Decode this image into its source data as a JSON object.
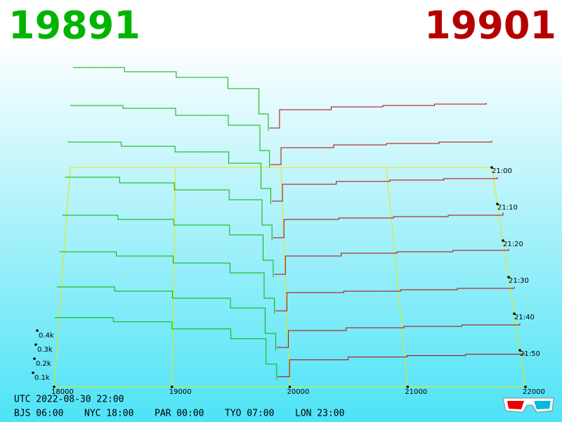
{
  "chart_data": {
    "type": "depth-waterfall",
    "best_bid": "19891",
    "best_ask": "19901",
    "bid_color": "#00b400",
    "ask_color": "#b40000",
    "frame_color": "#e8e800",
    "xlim": [
      18000,
      22000
    ],
    "xticks": [
      18000,
      19000,
      20000,
      21000,
      22000
    ],
    "ylim": [
      0,
      1
    ],
    "yticks": [
      {
        "value": 0.1,
        "label": "0.1k"
      },
      {
        "value": 0.2,
        "label": "0.2k"
      },
      {
        "value": 0.3,
        "label": "0.3k"
      },
      {
        "value": 0.4,
        "label": "0.4k"
      }
    ],
    "zlim": [
      0,
      60
    ],
    "zticks": [
      {
        "value": 0,
        "label": "21:00"
      },
      {
        "value": 10,
        "label": "21:10"
      },
      {
        "value": 20,
        "label": "21:20"
      },
      {
        "value": 30,
        "label": "21:30"
      },
      {
        "value": 40,
        "label": "21:40"
      },
      {
        "value": 50,
        "label": "21:50"
      }
    ],
    "bid_prices": [
      18000,
      18500,
      19000,
      19500,
      19800,
      19891
    ],
    "ask_prices": [
      19901,
      20000,
      20500,
      21000,
      21500,
      22000
    ],
    "snapshots": [
      {
        "z": -10,
        "bid": [
          0.45,
          0.42,
          0.38,
          0.3,
          0.12,
          0
        ],
        "ask": [
          0.02,
          0.15,
          0.17,
          0.18,
          0.19,
          0.2
        ]
      },
      {
        "z": 0,
        "bid": [
          0.44,
          0.42,
          0.37,
          0.3,
          0.12,
          0
        ],
        "ask": [
          0.02,
          0.14,
          0.16,
          0.17,
          0.18,
          0.19
        ]
      },
      {
        "z": 10,
        "bid": [
          0.44,
          0.41,
          0.37,
          0.29,
          0.11,
          0
        ],
        "ask": [
          0.02,
          0.14,
          0.16,
          0.17,
          0.18,
          0.19
        ]
      },
      {
        "z": 20,
        "bid": [
          0.45,
          0.41,
          0.36,
          0.29,
          0.11,
          0
        ],
        "ask": [
          0.02,
          0.15,
          0.16,
          0.17,
          0.18,
          0.2
        ]
      },
      {
        "z": 30,
        "bid": [
          0.44,
          0.41,
          0.37,
          0.3,
          0.12,
          0
        ],
        "ask": [
          0.02,
          0.15,
          0.17,
          0.18,
          0.19,
          0.2
        ]
      },
      {
        "z": 40,
        "bid": [
          0.44,
          0.41,
          0.36,
          0.29,
          0.11,
          0
        ],
        "ask": [
          0.02,
          0.15,
          0.16,
          0.17,
          0.18,
          0.19
        ]
      },
      {
        "z": 50,
        "bid": [
          0.45,
          0.42,
          0.37,
          0.3,
          0.12,
          0
        ],
        "ask": [
          0.02,
          0.14,
          0.16,
          0.17,
          0.18,
          0.19
        ]
      },
      {
        "z": 58,
        "bid": [
          0.44,
          0.41,
          0.36,
          0.29,
          0.11,
          0
        ],
        "ask": [
          0.02,
          0.14,
          0.16,
          0.17,
          0.18,
          0.19
        ]
      }
    ],
    "footer": {
      "utc": "UTC 2022-08-30 22:00",
      "zones": [
        "BJS 06:00",
        "NYC 18:00",
        "PAR 00:00",
        "TYO 07:00",
        "LON 23:00"
      ]
    }
  }
}
